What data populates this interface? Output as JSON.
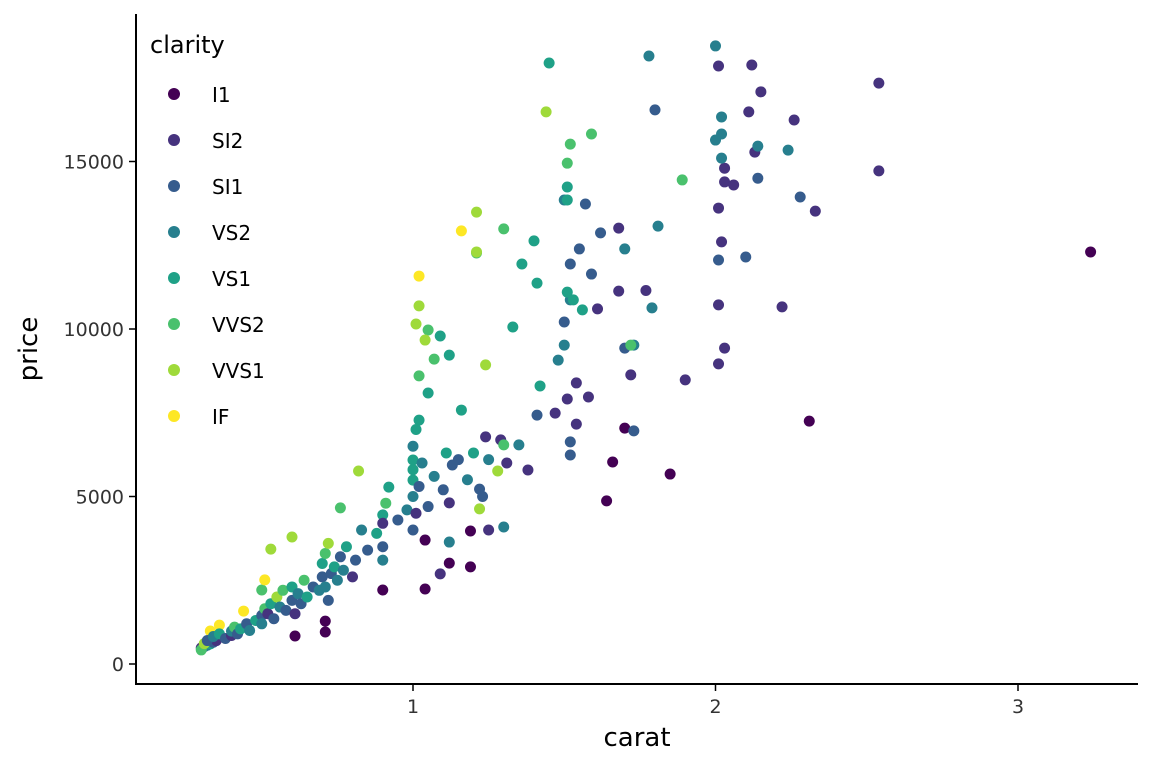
{
  "chart_data": {
    "type": "scatter",
    "xlabel": "carat",
    "ylabel": "price",
    "xlim": [
      0.13,
      3.37
    ],
    "ylim": [
      -550,
      19500
    ],
    "xticks": [
      1,
      2,
      3
    ],
    "yticks": [
      0,
      5000,
      10000,
      15000
    ],
    "grid": false,
    "legend": {
      "title": "clarity",
      "placement": "top-left",
      "entries": [
        "I1",
        "SI2",
        "SI1",
        "VS2",
        "VS1",
        "VVS2",
        "VVS1",
        "IF"
      ],
      "colors": [
        "#440154",
        "#46337E",
        "#365C8D",
        "#277F8E",
        "#1FA187",
        "#4AC16D",
        "#9FDA3A",
        "#FDE725"
      ]
    },
    "points_format": [
      "carat",
      "price",
      "clarity_index"
    ],
    "points": [
      [
        3.24,
        12300,
        0
      ],
      [
        2.31,
        7250,
        0
      ],
      [
        1.7,
        7040,
        0
      ],
      [
        1.66,
        6030,
        0
      ],
      [
        1.85,
        5670,
        0
      ],
      [
        1.64,
        4870,
        0
      ],
      [
        1.19,
        3970,
        0
      ],
      [
        1.19,
        2900,
        0
      ],
      [
        1.12,
        3010,
        0
      ],
      [
        1.04,
        2240,
        0
      ],
      [
        0.9,
        2210,
        0
      ],
      [
        0.71,
        955,
        0
      ],
      [
        0.71,
        1280,
        0
      ],
      [
        0.61,
        836,
        0
      ],
      [
        1.04,
        3700,
        0
      ],
      [
        2.54,
        17340,
        1
      ],
      [
        2.54,
        14720,
        1
      ],
      [
        2.11,
        16480,
        1
      ],
      [
        2.15,
        17080,
        1
      ],
      [
        2.26,
        16240,
        1
      ],
      [
        2.33,
        13520,
        1
      ],
      [
        2.01,
        13610,
        1
      ],
      [
        2.03,
        14800,
        1
      ],
      [
        2.03,
        14390,
        1
      ],
      [
        2.06,
        14300,
        1
      ],
      [
        2.13,
        15280,
        1
      ],
      [
        2.02,
        12600,
        1
      ],
      [
        2.01,
        10720,
        1
      ],
      [
        2.01,
        8960,
        1
      ],
      [
        2.03,
        9430,
        1
      ],
      [
        2.22,
        10660,
        1
      ],
      [
        2.12,
        17880,
        1
      ],
      [
        2.01,
        17850,
        1
      ],
      [
        1.68,
        13010,
        1
      ],
      [
        1.68,
        11130,
        1
      ],
      [
        1.72,
        8630,
        1
      ],
      [
        1.9,
        8480,
        1
      ],
      [
        1.77,
        11150,
        1
      ],
      [
        1.61,
        10600,
        1
      ],
      [
        1.51,
        7910,
        1
      ],
      [
        1.54,
        8390,
        1
      ],
      [
        1.58,
        7970,
        1
      ],
      [
        1.54,
        7160,
        1
      ],
      [
        1.47,
        7490,
        1
      ],
      [
        1.31,
        6000,
        1
      ],
      [
        1.29,
        6690,
        1
      ],
      [
        1.38,
        5790,
        1
      ],
      [
        1.24,
        6780,
        1
      ],
      [
        1.12,
        4810,
        1
      ],
      [
        1.09,
        2690,
        1
      ],
      [
        1.25,
        4000,
        1
      ],
      [
        1.8,
        16540,
        2
      ],
      [
        2.14,
        14500,
        2
      ],
      [
        2.28,
        13940,
        2
      ],
      [
        2.1,
        12150,
        2
      ],
      [
        2.01,
        12060,
        2
      ],
      [
        1.57,
        13730,
        2
      ],
      [
        1.62,
        12870,
        2
      ],
      [
        1.55,
        12390,
        2
      ],
      [
        1.52,
        11940,
        2
      ],
      [
        1.59,
        11640,
        2
      ],
      [
        1.5,
        10210,
        2
      ],
      [
        1.7,
        9430,
        2
      ],
      [
        1.73,
        6960,
        2
      ],
      [
        1.52,
        6630,
        2
      ],
      [
        1.52,
        6240,
        2
      ],
      [
        1.41,
        7430,
        2
      ],
      [
        1.13,
        5940,
        2
      ],
      [
        1.22,
        5220,
        2
      ],
      [
        1.78,
        18150,
        3
      ],
      [
        2.0,
        18450,
        3
      ],
      [
        2.02,
        16330,
        3
      ],
      [
        2.02,
        15820,
        3
      ],
      [
        2.0,
        15640,
        3
      ],
      [
        2.14,
        15460,
        3
      ],
      [
        2.24,
        15340,
        3
      ],
      [
        2.02,
        15100,
        3
      ],
      [
        1.81,
        13070,
        3
      ],
      [
        1.7,
        12390,
        3
      ],
      [
        1.79,
        10630,
        3
      ],
      [
        1.52,
        10870,
        3
      ],
      [
        1.5,
        9520,
        3
      ],
      [
        1.48,
        9070,
        3
      ],
      [
        1.73,
        9520,
        3
      ],
      [
        1.5,
        13850,
        3
      ],
      [
        1.35,
        6540,
        3
      ],
      [
        1.3,
        4090,
        3
      ],
      [
        1.12,
        3640,
        3
      ],
      [
        1.45,
        17940,
        4
      ],
      [
        1.51,
        14240,
        4
      ],
      [
        1.51,
        13850,
        4
      ],
      [
        1.4,
        12630,
        4
      ],
      [
        1.36,
        11940,
        4
      ],
      [
        1.41,
        11370,
        4
      ],
      [
        1.51,
        11100,
        4
      ],
      [
        1.53,
        10870,
        4
      ],
      [
        1.56,
        10570,
        4
      ],
      [
        1.42,
        8300,
        4
      ],
      [
        1.33,
        10060,
        4
      ],
      [
        1.09,
        9790,
        4
      ],
      [
        1.12,
        9220,
        4
      ],
      [
        1.05,
        8090,
        4
      ],
      [
        1.02,
        7280,
        4
      ],
      [
        1.0,
        6090,
        4
      ],
      [
        1.0,
        5490,
        4
      ],
      [
        0.92,
        5280,
        4
      ],
      [
        1.16,
        7580,
        4
      ],
      [
        0.9,
        4450,
        4
      ],
      [
        1.59,
        15820,
        5
      ],
      [
        1.52,
        15520,
        5
      ],
      [
        1.51,
        14950,
        5
      ],
      [
        1.89,
        14450,
        5
      ],
      [
        1.3,
        12990,
        5
      ],
      [
        1.21,
        12270,
        5
      ],
      [
        1.72,
        9520,
        5
      ],
      [
        1.07,
        9100,
        5
      ],
      [
        1.02,
        8600,
        5
      ],
      [
        1.05,
        9970,
        5
      ],
      [
        1.3,
        6540,
        5
      ],
      [
        0.76,
        4660,
        5
      ],
      [
        0.5,
        2210,
        5
      ],
      [
        1.44,
        16480,
        6
      ],
      [
        1.21,
        13490,
        6
      ],
      [
        1.21,
        12300,
        6
      ],
      [
        1.02,
        10690,
        6
      ],
      [
        1.01,
        10150,
        6
      ],
      [
        1.04,
        9670,
        6
      ],
      [
        1.24,
        8930,
        6
      ],
      [
        0.82,
        5760,
        6
      ],
      [
        1.28,
        5760,
        6
      ],
      [
        0.6,
        3790,
        6
      ],
      [
        0.53,
        3430,
        6
      ],
      [
        1.22,
        4630,
        6
      ],
      [
        1.16,
        12930,
        7
      ],
      [
        1.02,
        11580,
        7
      ],
      [
        0.51,
        2510,
        7
      ],
      [
        0.44,
        1580,
        7
      ],
      [
        0.33,
        985,
        7
      ],
      [
        0.36,
        1160,
        7
      ],
      [
        0.3,
        480,
        1
      ],
      [
        0.31,
        520,
        2
      ],
      [
        0.32,
        560,
        3
      ],
      [
        0.33,
        600,
        4
      ],
      [
        0.34,
        650,
        2
      ],
      [
        0.35,
        700,
        1
      ],
      [
        0.3,
        420,
        5
      ],
      [
        0.31,
        610,
        6
      ],
      [
        0.32,
        700,
        2
      ],
      [
        0.34,
        820,
        3
      ],
      [
        0.36,
        900,
        4
      ],
      [
        0.38,
        760,
        2
      ],
      [
        0.4,
        850,
        1
      ],
      [
        0.4,
        980,
        3
      ],
      [
        0.41,
        1100,
        5
      ],
      [
        0.42,
        900,
        2
      ],
      [
        0.43,
        1050,
        4
      ],
      [
        0.45,
        1200,
        2
      ],
      [
        0.46,
        1000,
        3
      ],
      [
        0.48,
        1300,
        4
      ],
      [
        0.5,
        1450,
        2
      ],
      [
        0.5,
        1200,
        3
      ],
      [
        0.51,
        1650,
        5
      ],
      [
        0.52,
        1500,
        1
      ],
      [
        0.53,
        1800,
        4
      ],
      [
        0.54,
        1350,
        2
      ],
      [
        0.55,
        2000,
        6
      ],
      [
        0.56,
        1700,
        3
      ],
      [
        0.57,
        2200,
        5
      ],
      [
        0.58,
        1600,
        2
      ],
      [
        0.6,
        1900,
        2
      ],
      [
        0.6,
        2300,
        4
      ],
      [
        0.61,
        1500,
        1
      ],
      [
        0.62,
        2100,
        3
      ],
      [
        0.63,
        1800,
        2
      ],
      [
        0.64,
        2500,
        5
      ],
      [
        0.65,
        2000,
        4
      ],
      [
        0.67,
        2300,
        2
      ],
      [
        0.69,
        2200,
        3
      ],
      [
        0.7,
        2600,
        2
      ],
      [
        0.7,
        3000,
        4
      ],
      [
        0.71,
        2300,
        3
      ],
      [
        0.71,
        3300,
        5
      ],
      [
        0.72,
        1900,
        2
      ],
      [
        0.72,
        3600,
        6
      ],
      [
        0.73,
        2700,
        2
      ],
      [
        0.74,
        2900,
        4
      ],
      [
        0.75,
        2500,
        3
      ],
      [
        0.76,
        3200,
        2
      ],
      [
        0.77,
        2800,
        3
      ],
      [
        0.78,
        3500,
        4
      ],
      [
        0.8,
        2600,
        1
      ],
      [
        0.81,
        3100,
        2
      ],
      [
        0.83,
        4000,
        3
      ],
      [
        0.85,
        3400,
        2
      ],
      [
        0.88,
        3900,
        4
      ],
      [
        0.9,
        3500,
        2
      ],
      [
        0.9,
        3100,
        3
      ],
      [
        0.9,
        4200,
        1
      ],
      [
        0.91,
        4800,
        5
      ],
      [
        0.95,
        4300,
        2
      ],
      [
        0.98,
        4600,
        3
      ],
      [
        1.0,
        4000,
        2
      ],
      [
        1.0,
        5000,
        3
      ],
      [
        1.0,
        5800,
        4
      ],
      [
        1.0,
        6500,
        3
      ],
      [
        1.01,
        4500,
        1
      ],
      [
        1.01,
        7000,
        4
      ],
      [
        1.02,
        5300,
        2
      ],
      [
        1.03,
        6000,
        3
      ],
      [
        1.05,
        4700,
        2
      ],
      [
        1.07,
        5600,
        3
      ],
      [
        1.1,
        5200,
        2
      ],
      [
        1.11,
        6300,
        4
      ],
      [
        1.15,
        6100,
        2
      ],
      [
        1.18,
        5500,
        3
      ],
      [
        1.2,
        6300,
        4
      ],
      [
        1.23,
        5000,
        2
      ],
      [
        1.25,
        6100,
        3
      ]
    ]
  }
}
